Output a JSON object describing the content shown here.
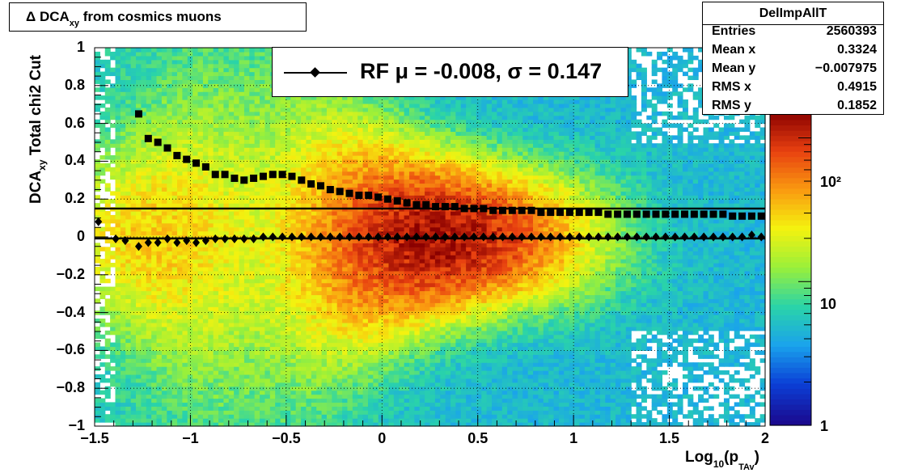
{
  "chart_data": {
    "type": "heatmap",
    "title": "Δ DCA_xy from cosmics muons",
    "title_parts": {
      "main": "Δ DCA",
      "sub": "xy",
      "rest": " from cosmics muons"
    },
    "xlabel": "Log10(pTAv)",
    "xlabel_parts": {
      "main": "Log",
      "sub1": "10",
      "mid": "(p",
      "sub2": "TAv",
      "end": ")"
    },
    "ylabel": "DCAxy  Total chi2 Cut",
    "ylabel_parts": {
      "main": "DCA",
      "sub": "xy",
      "rest": "  Total chi2 Cut"
    },
    "xlim": [
      -1.5,
      2
    ],
    "ylim": [
      -1,
      1
    ],
    "x_ticks": [
      "−1.5",
      "−1",
      "−0.5",
      "0",
      "0.5",
      "1",
      "1.5",
      "2"
    ],
    "y_ticks": [
      "−1",
      "−0.8",
      "−0.6",
      "−0.4",
      "−0.2",
      "0",
      "0.2",
      "0.4",
      "0.6",
      "0.8",
      "1"
    ],
    "z_scale": "log",
    "z_ticks": [
      "1",
      "10",
      "10²"
    ],
    "grid": true,
    "colormap": [
      "#1a0a8f",
      "#0b3fd6",
      "#1aa3ec",
      "#2ad4a8",
      "#9af03a",
      "#f4f20f",
      "#fa9a10",
      "#e84010",
      "#8a0000"
    ],
    "stats": {
      "name": "DelImpAllT",
      "rows": [
        {
          "key": "Entries",
          "value": "2560393"
        },
        {
          "key": "Mean x",
          "value": "0.3324"
        },
        {
          "key": "Mean y",
          "value": "−0.007975"
        },
        {
          "key": "RMS x",
          "value": "0.4915"
        },
        {
          "key": "RMS y",
          "value": "0.1852"
        }
      ]
    },
    "legend": {
      "text": "RF μ = -0.008, σ =   0.147",
      "position": "top-center"
    },
    "hlines": [
      0.15,
      -0.008
    ],
    "series": [
      {
        "name": "RF μ",
        "marker": "diamond",
        "x": [
          -1.48,
          -1.39,
          -1.34,
          -1.27,
          -1.22,
          -1.17,
          -1.12,
          -1.07,
          -1.02,
          -0.97,
          -0.92,
          -0.87,
          -0.82,
          -0.77,
          -0.72,
          -0.67,
          -0.62,
          -0.57,
          -0.52,
          -0.47,
          -0.42,
          -0.37,
          -0.32,
          -0.27,
          -0.22,
          -0.17,
          -0.12,
          -0.07,
          -0.02,
          0.03,
          0.08,
          0.13,
          0.18,
          0.23,
          0.28,
          0.33,
          0.38,
          0.43,
          0.48,
          0.53,
          0.58,
          0.63,
          0.68,
          0.73,
          0.78,
          0.83,
          0.88,
          0.93,
          0.98,
          1.03,
          1.08,
          1.13,
          1.18,
          1.23,
          1.28,
          1.33,
          1.38,
          1.43,
          1.48,
          1.53,
          1.58,
          1.63,
          1.68,
          1.73,
          1.78,
          1.83,
          1.88,
          1.93,
          1.98
        ],
        "values": [
          0.08,
          -0.01,
          -0.02,
          -0.05,
          -0.03,
          -0.03,
          -0.01,
          -0.03,
          -0.02,
          -0.03,
          -0.02,
          -0.01,
          -0.01,
          -0.01,
          -0.01,
          -0.01,
          0.0,
          0.0,
          0.0,
          0.0,
          0.0,
          0.0,
          0.0,
          0.0,
          0.0,
          0.0,
          0.0,
          0.0,
          0.0,
          0.0,
          0.0,
          0.0,
          0.0,
          0.0,
          0.0,
          0.0,
          0.0,
          0.0,
          0.0,
          0.0,
          0.0,
          0.0,
          0.0,
          0.0,
          0.0,
          0.0,
          0.0,
          0.0,
          0.0,
          0.0,
          0.0,
          0.0,
          0.0,
          0.0,
          0.0,
          0.0,
          0.0,
          0.0,
          0.0,
          0.0,
          0.0,
          0.0,
          0.0,
          0.0,
          0.0,
          0.0,
          0.0,
          0.01,
          0.0
        ]
      },
      {
        "name": "RF σ",
        "marker": "square",
        "x": [
          -1.27,
          -1.22,
          -1.17,
          -1.12,
          -1.07,
          -1.02,
          -0.97,
          -0.92,
          -0.87,
          -0.82,
          -0.77,
          -0.72,
          -0.67,
          -0.62,
          -0.57,
          -0.52,
          -0.47,
          -0.42,
          -0.37,
          -0.32,
          -0.27,
          -0.22,
          -0.17,
          -0.12,
          -0.07,
          -0.02,
          0.03,
          0.08,
          0.13,
          0.18,
          0.23,
          0.28,
          0.33,
          0.38,
          0.43,
          0.48,
          0.53,
          0.58,
          0.63,
          0.68,
          0.73,
          0.78,
          0.83,
          0.88,
          0.93,
          0.98,
          1.03,
          1.08,
          1.13,
          1.18,
          1.23,
          1.28,
          1.33,
          1.38,
          1.43,
          1.48,
          1.53,
          1.58,
          1.63,
          1.68,
          1.73,
          1.78,
          1.83,
          1.88,
          1.93,
          1.98
        ],
        "values": [
          0.65,
          0.52,
          0.5,
          0.47,
          0.43,
          0.41,
          0.39,
          0.37,
          0.33,
          0.33,
          0.31,
          0.3,
          0.31,
          0.32,
          0.33,
          0.33,
          0.32,
          0.3,
          0.28,
          0.27,
          0.25,
          0.24,
          0.23,
          0.22,
          0.22,
          0.21,
          0.2,
          0.19,
          0.18,
          0.17,
          0.17,
          0.16,
          0.16,
          0.16,
          0.15,
          0.15,
          0.15,
          0.14,
          0.14,
          0.14,
          0.14,
          0.14,
          0.13,
          0.13,
          0.13,
          0.13,
          0.13,
          0.13,
          0.13,
          0.12,
          0.12,
          0.12,
          0.12,
          0.12,
          0.12,
          0.12,
          0.12,
          0.12,
          0.12,
          0.12,
          0.12,
          0.12,
          0.11,
          0.11,
          0.11,
          0.11
        ]
      }
    ]
  }
}
